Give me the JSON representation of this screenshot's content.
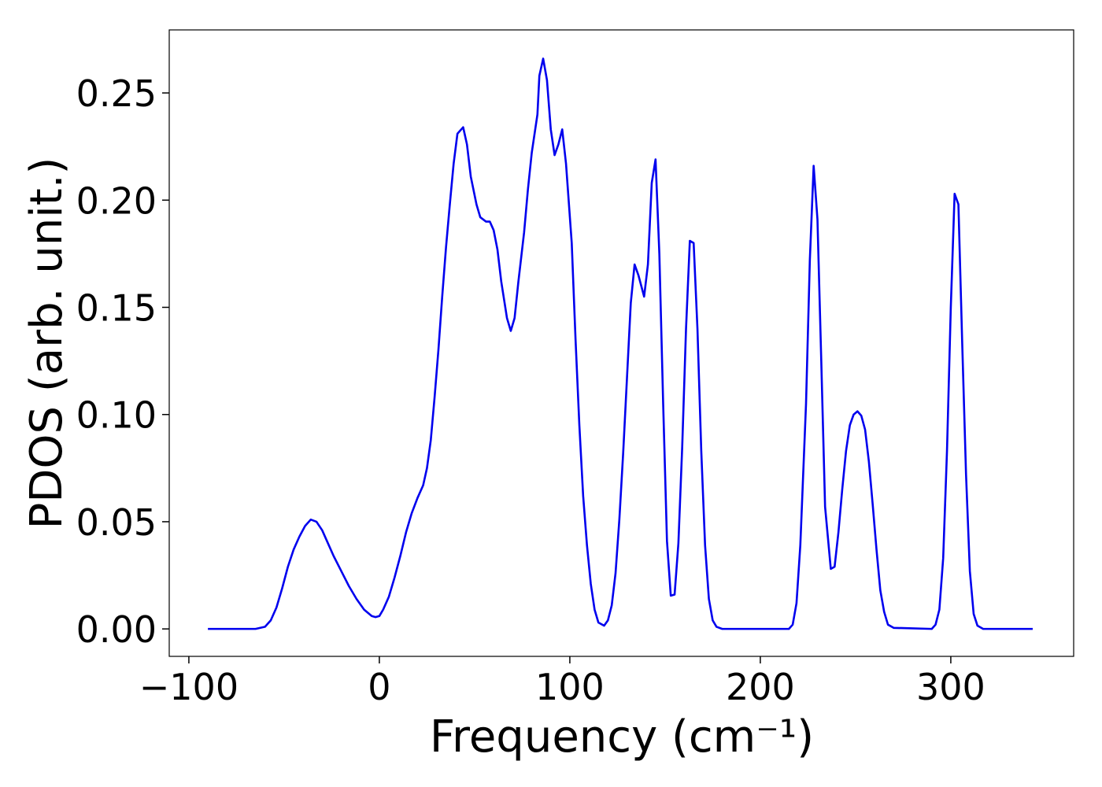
{
  "chart_data": {
    "type": "line",
    "x_label": "Frequency (cm⁻¹)",
    "y_label": "PDOS (arb. unit.)",
    "x": [
      -90,
      -65,
      -60,
      -57,
      -54,
      -51,
      -48,
      -45,
      -42,
      -39,
      -36,
      -33,
      -30,
      -27,
      -24,
      -20,
      -16,
      -12,
      -8,
      -4,
      -2,
      0,
      2,
      5,
      8,
      11,
      14,
      17,
      20,
      23,
      25,
      27,
      29,
      31,
      33,
      35,
      37,
      39,
      41,
      44,
      46,
      48,
      51,
      53,
      56,
      58,
      60,
      62,
      64,
      67,
      69,
      71,
      73,
      76,
      78,
      80,
      83,
      84,
      86,
      88,
      90,
      92,
      94,
      96,
      98,
      101,
      103,
      105,
      107,
      109,
      111,
      113,
      115,
      118,
      120,
      122,
      124,
      126,
      128,
      130,
      132,
      134,
      136,
      139,
      141,
      143,
      145,
      147,
      149,
      151,
      153,
      155,
      157,
      159,
      161,
      163,
      165,
      167,
      169,
      171,
      173,
      175,
      177,
      180,
      215,
      217,
      219,
      221,
      224,
      226,
      228,
      230,
      232,
      234,
      237,
      239,
      241,
      243,
      245,
      247,
      249,
      251,
      253,
      255,
      257,
      259,
      261,
      263,
      265,
      267,
      270,
      290,
      292,
      294,
      296,
      298,
      300,
      302,
      304,
      306,
      308,
      310,
      312,
      314,
      317,
      343
    ],
    "series": [
      {
        "name": "PDOS",
        "color": "#0000ee",
        "values": [
          0,
          0,
          0.001,
          0.004,
          0.01,
          0.019,
          0.029,
          0.037,
          0.043,
          0.048,
          0.051,
          0.05,
          0.046,
          0.04,
          0.034,
          0.027,
          0.02,
          0.014,
          0.009,
          0.006,
          0.0055,
          0.006,
          0.009,
          0.015,
          0.024,
          0.034,
          0.045,
          0.054,
          0.061,
          0.067,
          0.075,
          0.088,
          0.108,
          0.13,
          0.155,
          0.178,
          0.198,
          0.217,
          0.231,
          0.234,
          0.226,
          0.211,
          0.198,
          0.192,
          0.19,
          0.19,
          0.186,
          0.177,
          0.162,
          0.145,
          0.139,
          0.145,
          0.162,
          0.185,
          0.205,
          0.222,
          0.24,
          0.258,
          0.266,
          0.256,
          0.233,
          0.221,
          0.226,
          0.233,
          0.217,
          0.18,
          0.135,
          0.095,
          0.062,
          0.039,
          0.021,
          0.009,
          0.003,
          0.0015,
          0.004,
          0.011,
          0.026,
          0.051,
          0.082,
          0.117,
          0.152,
          0.17,
          0.165,
          0.155,
          0.17,
          0.208,
          0.219,
          0.175,
          0.105,
          0.041,
          0.0155,
          0.016,
          0.04,
          0.085,
          0.14,
          0.181,
          0.18,
          0.14,
          0.083,
          0.039,
          0.014,
          0.004,
          0.001,
          0,
          0,
          0.002,
          0.012,
          0.039,
          0.105,
          0.172,
          0.216,
          0.191,
          0.125,
          0.057,
          0.028,
          0.029,
          0.045,
          0.065,
          0.083,
          0.095,
          0.1,
          0.1015,
          0.0995,
          0.093,
          0.078,
          0.058,
          0.037,
          0.018,
          0.008,
          0.002,
          0.0005,
          0,
          0.002,
          0.009,
          0.033,
          0.083,
          0.15,
          0.203,
          0.198,
          0.133,
          0.072,
          0.027,
          0.007,
          0.0015,
          0,
          0
        ]
      }
    ],
    "xlim": [
      -110.3,
      364.5
    ],
    "xticks": [
      {
        "value": -100,
        "label": "−100"
      },
      0,
      100,
      200,
      300
    ],
    "ylim": [
      -0.0128,
      0.2794
    ],
    "yticks": [
      {
        "value": 0,
        "label": "0.00"
      },
      {
        "value": 0.05,
        "label": "0.05"
      },
      {
        "value": 0.1,
        "label": "0.10"
      },
      {
        "value": 0.15,
        "label": "0.15"
      },
      {
        "value": 0.2,
        "label": "0.20"
      },
      {
        "value": 0.25,
        "label": "0.25"
      }
    ],
    "grid": false
  }
}
